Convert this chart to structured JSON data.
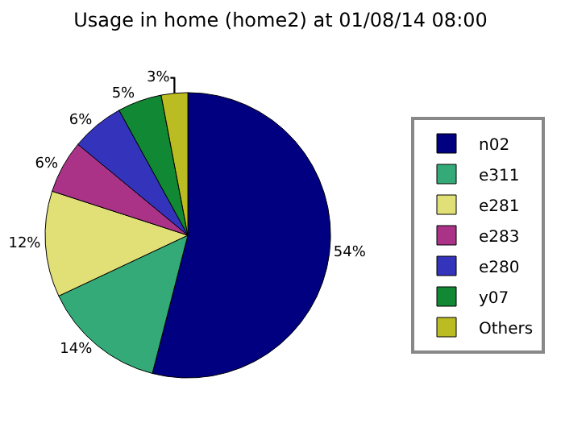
{
  "chart_data": {
    "type": "pie",
    "title": "Usage in home (home2) at 01/08/14 08:00",
    "categories": [
      "n02",
      "e311",
      "e281",
      "e283",
      "e280",
      "y07",
      "Others"
    ],
    "values": [
      54,
      14,
      12,
      6,
      6,
      5,
      3
    ],
    "value_labels": [
      "54%",
      "14%",
      "12%",
      "6%",
      "6%",
      "5%",
      "3%"
    ],
    "colors": [
      "#000080",
      "#33aa77",
      "#e0e077",
      "#aa3388",
      "#3333bb",
      "#118833",
      "#bbbb22"
    ],
    "legend": "right"
  }
}
